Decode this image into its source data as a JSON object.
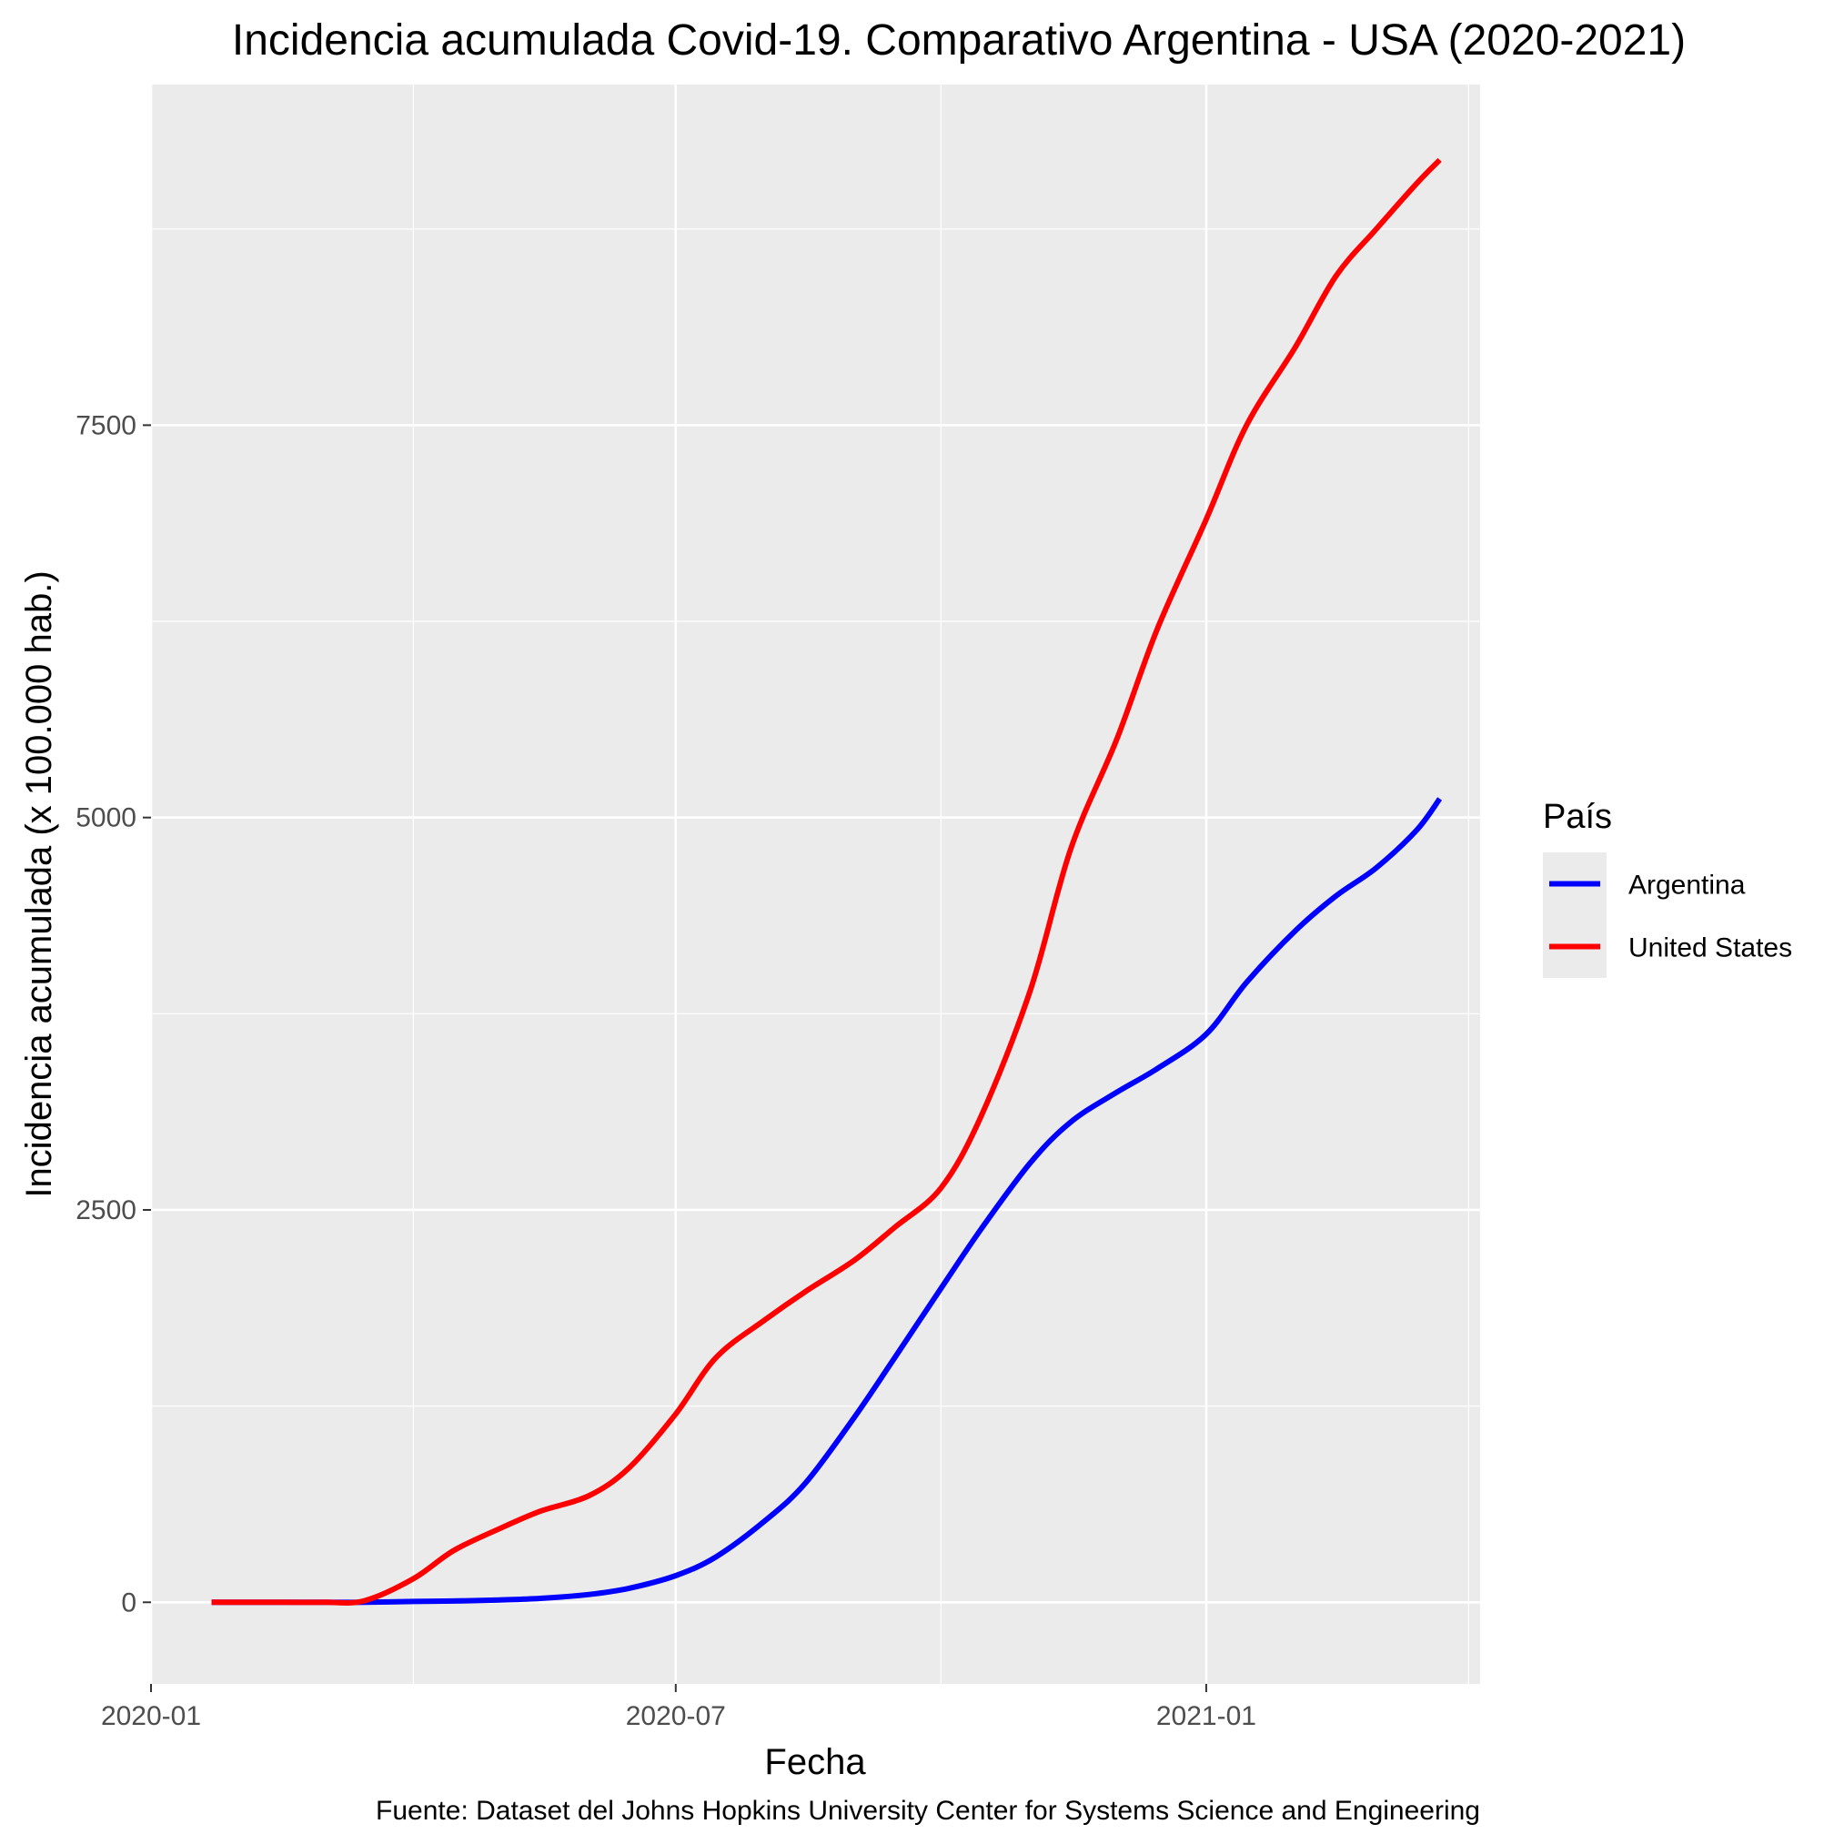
{
  "chart_data": {
    "type": "line",
    "title": "Incidencia acumulada Covid-19. Comparativo Argentina - USA (2020-2021)",
    "xlabel": "Fecha",
    "ylabel": "Incidencia acumulada (x 100.000 hab.)",
    "caption": "Fuente: Dataset del Johns Hopkins University Center for Systems Science and Engineering",
    "x_ticks": [
      "2020-01",
      "2020-07",
      "2021-01"
    ],
    "y_ticks": [
      0,
      2500,
      5000,
      7500
    ],
    "xlim": [
      "2020-01-01",
      "2021-04-06"
    ],
    "ylim": [
      -520,
      9670
    ],
    "grid": true,
    "legend": {
      "title": "País",
      "position": "right"
    },
    "series": [
      {
        "name": "Argentina",
        "color": "#0000ff",
        "x": [
          "2020-01-22",
          "2020-03-01",
          "2020-03-15",
          "2020-04-01",
          "2020-04-15",
          "2020-05-01",
          "2020-05-15",
          "2020-06-01",
          "2020-06-15",
          "2020-07-01",
          "2020-07-15",
          "2020-08-01",
          "2020-08-15",
          "2020-09-01",
          "2020-09-15",
          "2020-10-01",
          "2020-10-15",
          "2020-11-01",
          "2020-11-15",
          "2020-12-01",
          "2020-12-15",
          "2021-01-01",
          "2021-01-15",
          "2021-02-01",
          "2021-02-15",
          "2021-03-01",
          "2021-03-15",
          "2021-03-23"
        ],
        "y": [
          0,
          0,
          0,
          5,
          8,
          15,
          25,
          50,
          90,
          170,
          290,
          520,
          760,
          1180,
          1560,
          2000,
          2380,
          2800,
          3060,
          3250,
          3400,
          3620,
          3950,
          4280,
          4500,
          4680,
          4920,
          5120
        ]
      },
      {
        "name": "United States",
        "color": "#ff0000",
        "x": [
          "2020-01-22",
          "2020-02-15",
          "2020-03-01",
          "2020-03-15",
          "2020-04-01",
          "2020-04-15",
          "2020-05-01",
          "2020-05-15",
          "2020-06-01",
          "2020-06-15",
          "2020-07-01",
          "2020-07-15",
          "2020-08-01",
          "2020-08-15",
          "2020-09-01",
          "2020-09-15",
          "2020-10-01",
          "2020-10-15",
          "2020-11-01",
          "2020-11-15",
          "2020-12-01",
          "2020-12-15",
          "2021-01-01",
          "2021-01-15",
          "2021-02-01",
          "2021-02-15",
          "2021-03-01",
          "2021-03-15",
          "2021-03-23"
        ],
        "y": [
          0,
          0,
          0,
          10,
          150,
          330,
          470,
          580,
          680,
          860,
          1200,
          1560,
          1800,
          1980,
          2180,
          2390,
          2640,
          3100,
          3900,
          4800,
          5500,
          6200,
          6900,
          7500,
          8000,
          8450,
          8750,
          9040,
          9190
        ]
      }
    ]
  }
}
